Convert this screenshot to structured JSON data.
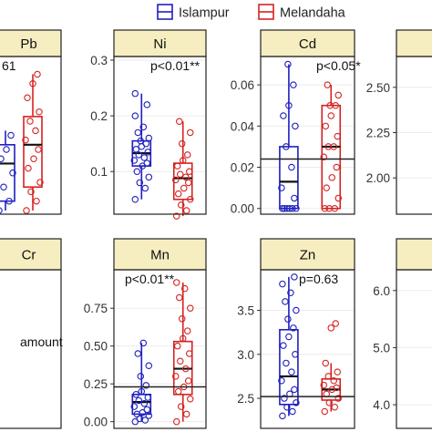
{
  "legend": {
    "items": [
      {
        "label": "Islampur",
        "color": "#1f1fbf"
      },
      {
        "label": "Melandaha",
        "color": "#d62222"
      }
    ],
    "placement": "top"
  },
  "colors": {
    "strip_fill": "#f6eec0",
    "grid": "#ebebeb",
    "box_fill": "#ffffff"
  },
  "chart_data": [
    {
      "type": "box",
      "facet": "Pb",
      "annotation": "61",
      "clipped": true,
      "ylim": [
        0,
        0.32
      ],
      "yticks": [],
      "series": [
        {
          "name": "Islampur",
          "q1": 0.02,
          "median": 0.1,
          "q3": 0.14,
          "whisker_low": 0.0,
          "whisker_high": 0.17,
          "points": [
            0.0,
            0.02,
            0.05,
            0.08,
            0.11,
            0.13,
            0.16
          ]
        },
        {
          "name": "Melandaha",
          "q1": 0.05,
          "median": 0.14,
          "q3": 0.2,
          "whisker_low": 0.0,
          "whisker_high": 0.29,
          "points": [
            0.0,
            0.02,
            0.04,
            0.06,
            0.09,
            0.11,
            0.13,
            0.15,
            0.17,
            0.19,
            0.21,
            0.24,
            0.27,
            0.29
          ]
        }
      ]
    },
    {
      "type": "box",
      "facet": "Ni",
      "annotation": "p<0.01**",
      "ylim": [
        0.03,
        0.3
      ],
      "yticks": [
        "0.1",
        "0.2",
        "0.3"
      ],
      "series": [
        {
          "name": "Islampur",
          "q1": 0.11,
          "median": 0.133,
          "q3": 0.155,
          "whisker_low": 0.05,
          "whisker_high": 0.24,
          "points": [
            0.05,
            0.07,
            0.08,
            0.09,
            0.1,
            0.11,
            0.115,
            0.12,
            0.125,
            0.13,
            0.135,
            0.14,
            0.145,
            0.15,
            0.155,
            0.16,
            0.17,
            0.18,
            0.2,
            0.22,
            0.24
          ]
        },
        {
          "name": "Melandaha",
          "q1": 0.05,
          "median": 0.088,
          "q3": 0.115,
          "whisker_low": 0.02,
          "whisker_high": 0.19,
          "points": [
            0.02,
            0.03,
            0.04,
            0.05,
            0.06,
            0.07,
            0.08,
            0.085,
            0.09,
            0.095,
            0.1,
            0.11,
            0.12,
            0.13,
            0.15,
            0.17,
            0.19
          ]
        }
      ]
    },
    {
      "type": "box",
      "facet": "Cd",
      "annotation": "p<0.05*",
      "ylim": [
        -0.001,
        0.072
      ],
      "yticks": [
        "0.00",
        "0.02",
        "0.04",
        "0.06"
      ],
      "series": [
        {
          "name": "Islampur",
          "q1": 0.0,
          "median": 0.013,
          "q3": 0.03,
          "whisker_low": 0.0,
          "whisker_high": 0.07,
          "points": [
            0.0,
            0.0,
            0.0,
            0.0,
            0.0,
            0.0,
            0.005,
            0.01,
            0.02,
            0.03,
            0.04,
            0.045,
            0.05,
            0.06,
            0.07
          ]
        },
        {
          "name": "Melandaha",
          "q1": 0.0,
          "median": 0.03,
          "q3": 0.05,
          "whisker_low": 0.0,
          "whisker_high": 0.06,
          "points": [
            0.0,
            0.0,
            0.0,
            0.005,
            0.01,
            0.015,
            0.02,
            0.025,
            0.03,
            0.03,
            0.035,
            0.04,
            0.045,
            0.05,
            0.05,
            0.055,
            0.06
          ]
        },
        {
          "name": "mean_line",
          "value": 0.024
        }
      ]
    },
    {
      "type": "box",
      "facet": "",
      "clipped": true,
      "ylim": [
        1.82,
        2.65
      ],
      "yticks": [
        "2.00",
        "2.25",
        "2.50"
      ],
      "series": []
    },
    {
      "type": "box",
      "facet": "Cr",
      "annotation": "amount",
      "clipped": true,
      "ylim": [
        0,
        1
      ],
      "yticks": [],
      "series": []
    },
    {
      "type": "box",
      "facet": "Mn",
      "annotation": "p<0.01**",
      "ylim": [
        -0.02,
        0.98
      ],
      "yticks": [
        "0.00",
        "0.25",
        "0.50",
        "0.75"
      ],
      "series": [
        {
          "name": "Islampur",
          "q1": 0.05,
          "median": 0.13,
          "q3": 0.18,
          "whisker_low": 0.0,
          "whisker_high": 0.52,
          "points": [
            0.0,
            0.01,
            0.02,
            0.04,
            0.05,
            0.06,
            0.08,
            0.1,
            0.12,
            0.14,
            0.16,
            0.18,
            0.2,
            0.24,
            0.3,
            0.37,
            0.45,
            0.52
          ]
        },
        {
          "name": "Melandaha",
          "q1": 0.18,
          "median": 0.35,
          "q3": 0.53,
          "whisker_low": 0.0,
          "whisker_high": 0.92,
          "points": [
            0.0,
            0.05,
            0.1,
            0.15,
            0.2,
            0.23,
            0.27,
            0.3,
            0.35,
            0.4,
            0.45,
            0.5,
            0.55,
            0.6,
            0.68,
            0.75,
            0.82,
            0.88,
            0.92
          ]
        },
        {
          "name": "mean_line",
          "value": 0.23
        }
      ]
    },
    {
      "type": "box",
      "facet": "Zn",
      "annotation": "p=0.63",
      "ylim": [
        2.2,
        3.92
      ],
      "yticks": [
        "2.5",
        "3.0",
        "3.5"
      ],
      "series": [
        {
          "name": "Islampur",
          "q1": 2.43,
          "median": 2.75,
          "q3": 3.28,
          "whisker_low": 2.3,
          "whisker_high": 3.88,
          "points": [
            2.3,
            2.35,
            2.4,
            2.45,
            2.5,
            2.55,
            2.6,
            2.7,
            2.8,
            2.9,
            3.0,
            3.1,
            3.2,
            3.3,
            3.4,
            3.5,
            3.6,
            3.7,
            3.8,
            3.88
          ]
        },
        {
          "name": "Melandaha",
          "q1": 2.48,
          "median": 2.6,
          "q3": 2.72,
          "whisker_low": 2.35,
          "whisker_high": 2.9,
          "points": [
            2.35,
            2.4,
            2.45,
            2.5,
            2.55,
            2.6,
            2.62,
            2.65,
            2.7,
            2.75,
            2.8,
            2.9,
            3.3,
            3.35
          ]
        },
        {
          "name": "mean_line",
          "value": 2.52
        }
      ]
    },
    {
      "type": "box",
      "facet": "",
      "clipped": true,
      "ylim": [
        3.65,
        6.3
      ],
      "yticks": [
        "4.0",
        "5.0",
        "6.0"
      ],
      "series": []
    }
  ]
}
